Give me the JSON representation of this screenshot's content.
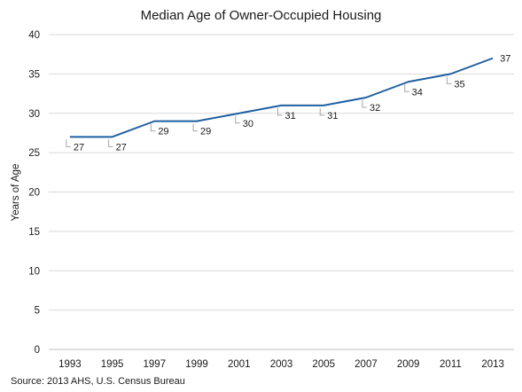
{
  "chart_data": {
    "type": "line",
    "title": "Median Age of Owner-Occupied Housing",
    "ylabel": "Years of Age",
    "xlabel": "",
    "source": "Source: 2013 AHS, U.S. Census Bureau",
    "x": [
      "1993",
      "1995",
      "1997",
      "1999",
      "2001",
      "2003",
      "2005",
      "2007",
      "2009",
      "2011",
      "2013"
    ],
    "series": [
      {
        "values": [
          27,
          27,
          29,
          29,
          30,
          31,
          31,
          32,
          34,
          35,
          37
        ]
      }
    ],
    "ylim": [
      0,
      40
    ],
    "yticks": [
      0,
      5,
      10,
      15,
      20,
      25,
      30,
      35,
      40
    ],
    "grid": true,
    "legend": "none",
    "line_color": "#1f5fa0"
  }
}
